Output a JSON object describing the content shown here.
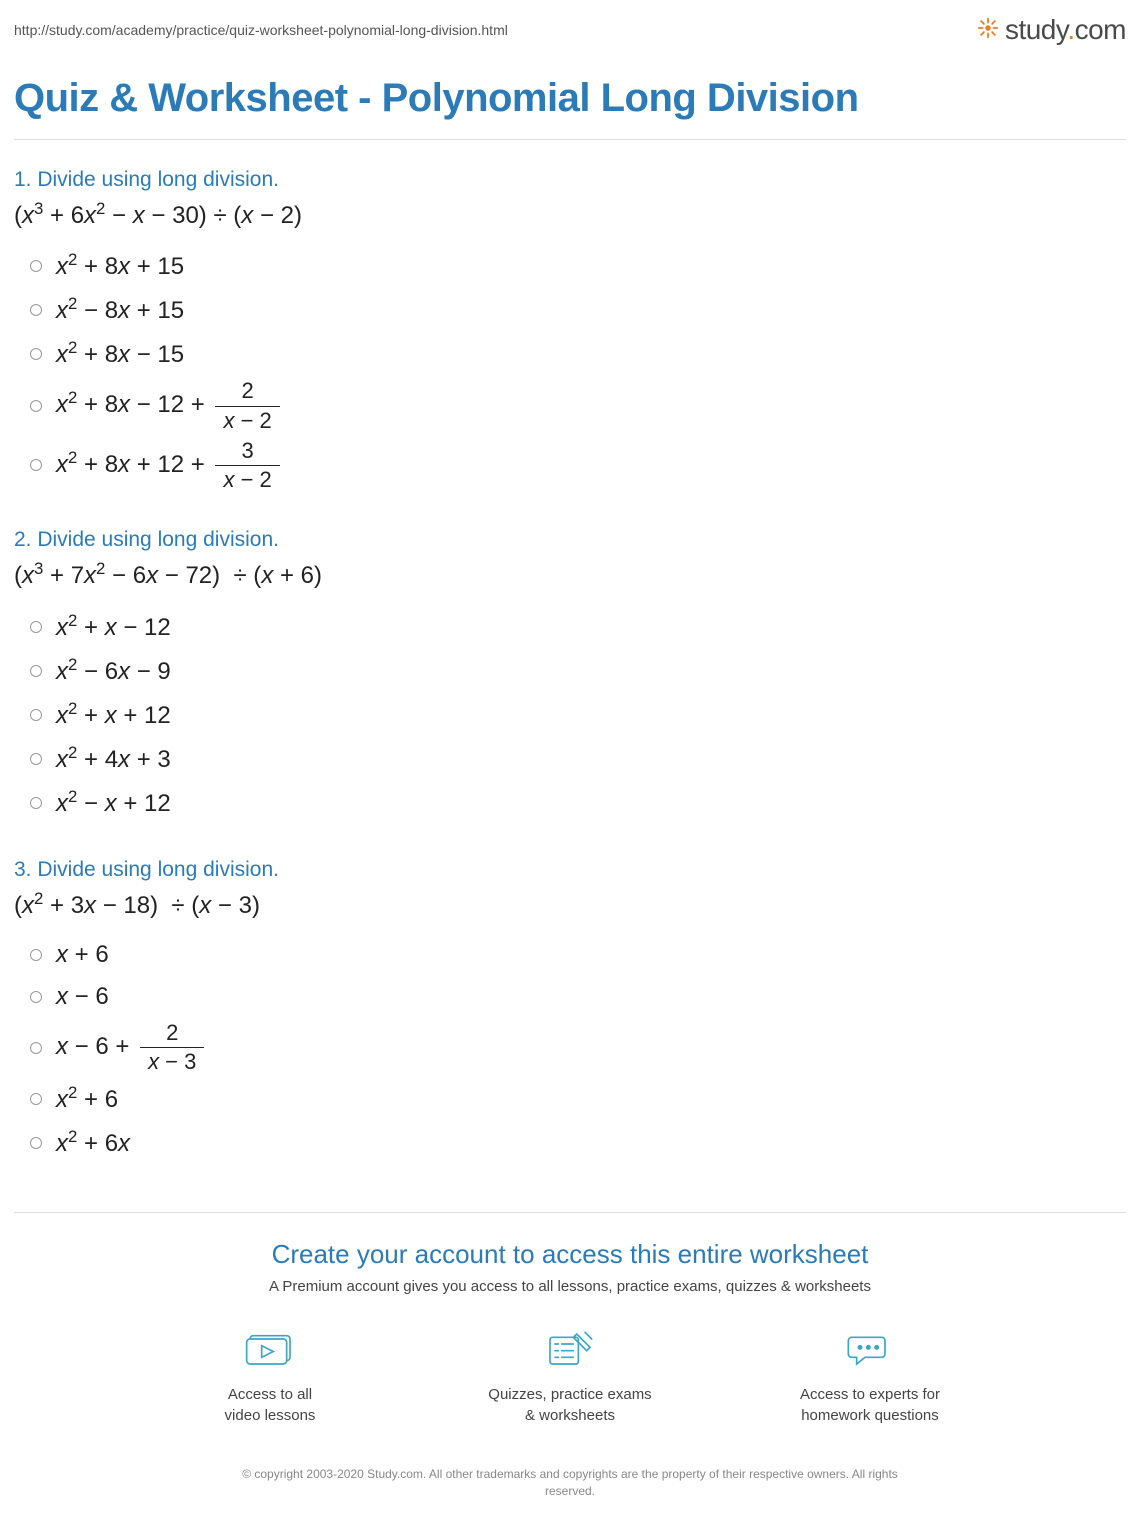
{
  "url": "http://study.com/academy/practice/quiz-worksheet-polynomial-long-division.html",
  "logo": {
    "text_a": "study",
    "text_b": "com"
  },
  "title": "Quiz & Worksheet - Polynomial Long Division",
  "colors": {
    "heading": "#2b7bb9",
    "text": "#333333",
    "math": "#222222",
    "rule": "#dddddd",
    "icon": "#3aa6c9",
    "logo_accent": "#e67e22",
    "copyright": "#888888"
  },
  "typography": {
    "title_fontsize": 40,
    "question_head_fontsize": 21,
    "math_fontsize": 24,
    "cta_title_fontsize": 26,
    "body_fontsize": 15
  },
  "questions": [
    {
      "number": "1.",
      "prompt": "Divide using long division.",
      "expr_html": "(<span class='v'>x</span><sup>3</sup> + 6<span class='v'>x</span><sup>2</sup> − <span class='v'>x</span> − 30) ÷ (<span class='v'>x</span> − 2)",
      "choices": [
        "<span class='v'>x</span><sup>2</sup> + 8<span class='v'>x</span> + 15",
        "<span class='v'>x</span><sup>2</sup> − 8<span class='v'>x</span> + 15",
        "<span class='v'>x</span><sup>2</sup> + 8<span class='v'>x</span> − 15",
        "<span class='v'>x</span><sup>2</sup> + 8<span class='v'>x</span> − 12 + <span class='frac'><span class='num'>2</span><span class='den'><span class='v'>x</span> − 2</span></span>",
        "<span class='v'>x</span><sup>2</sup> + 8<span class='v'>x</span> + 12 + <span class='frac'><span class='num'>3</span><span class='den'><span class='v'>x</span> − 2</span></span>"
      ]
    },
    {
      "number": "2.",
      "prompt": "Divide using long division.",
      "expr_html": "(<span class='v'>x</span><sup>3</sup> + 7<span class='v'>x</span><sup>2</sup> − 6<span class='v'>x</span> − 72)&nbsp; ÷ (<span class='v'>x</span> + 6)",
      "choices": [
        "<span class='v'>x</span><sup>2</sup> + <span class='v'>x</span> − 12",
        "<span class='v'>x</span><sup>2</sup> − 6<span class='v'>x</span> − 9",
        "<span class='v'>x</span><sup>2</sup> + <span class='v'>x</span> + 12",
        "<span class='v'>x</span><sup>2</sup> + 4<span class='v'>x</span> + 3",
        "<span class='v'>x</span><sup>2</sup> − <span class='v'>x</span> + 12"
      ]
    },
    {
      "number": "3.",
      "prompt": "Divide using long division.",
      "expr_html": "(<span class='v'>x</span><sup>2</sup> + 3<span class='v'>x</span> − 18)&nbsp; ÷ (<span class='v'>x</span> − 3)",
      "choices": [
        "<span class='v'>x</span> + 6",
        "<span class='v'>x</span> − 6",
        "<span class='v'>x</span> − 6 + <span class='frac'><span class='num'>2</span><span class='den'><span class='v'>x</span> − 3</span></span>",
        "<span class='v'>x</span><sup>2</sup> + 6",
        "<span class='v'>x</span><sup>2</sup> + 6<span class='v'>x</span>"
      ]
    }
  ],
  "cta": {
    "title": "Create your account to access this entire worksheet",
    "subtitle": "A Premium account gives you access to all lessons, practice exams, quizzes & worksheets",
    "features": [
      {
        "icon": "video",
        "line1": "Access to all",
        "line2": "video lessons"
      },
      {
        "icon": "quiz",
        "line1": "Quizzes, practice exams",
        "line2": "& worksheets"
      },
      {
        "icon": "chat",
        "line1": "Access to experts for",
        "line2": "homework questions"
      }
    ]
  },
  "copyright": "© copyright 2003-2020 Study.com. All other trademarks and copyrights are the property of their respective owners. All rights reserved."
}
